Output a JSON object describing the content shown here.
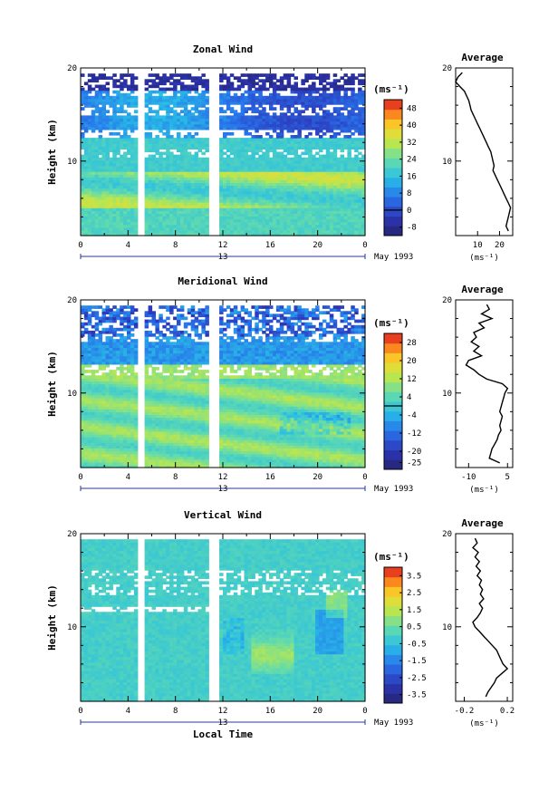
{
  "unit_label": "(ms⁻¹)",
  "date_label": "May 1993",
  "date_day": "13",
  "ylabel": "Height (km)",
  "xlabel": "Local Time",
  "profile_title": "Average",
  "chart_data": [
    {
      "type": "heatmap",
      "title": "Zonal Wind",
      "ylabel": "Height (km)",
      "x_ticks": [
        "0",
        "4",
        "8",
        "12",
        "16",
        "20",
        "0"
      ],
      "xlim": [
        0,
        24
      ],
      "y_ticks": [
        "10",
        "20"
      ],
      "ylim": [
        2,
        20
      ],
      "gaps_hours": [
        [
          5.0,
          5.3
        ],
        [
          10.8,
          11.5
        ]
      ],
      "colorbar_ticks": [
        "-8",
        "0",
        "8",
        "16",
        "24",
        "32",
        "40",
        "48"
      ],
      "colorbar_range": [
        -12,
        52
      ],
      "colorbar_contour": 0,
      "profile": {
        "title": "Average",
        "xticks": [
          "10",
          "20"
        ],
        "xlim": [
          0,
          26
        ],
        "y": [
          19.5,
          19.0,
          18.5,
          18.0,
          17.5,
          17.0,
          16.5,
          16.0,
          15.5,
          15.0,
          14.5,
          14.0,
          13.5,
          13.0,
          12.5,
          12.0,
          11.5,
          11.0,
          10.5,
          10.0,
          9.5,
          9.0,
          8.5,
          8.0,
          7.5,
          7.0,
          6.5,
          6.0,
          5.5,
          5.0,
          4.5,
          4.0,
          3.5,
          3.0,
          2.5
        ],
        "x": [
          3,
          1,
          0,
          2,
          4,
          5,
          6,
          6.5,
          7,
          8,
          9,
          10,
          11,
          12,
          13,
          14,
          15,
          16,
          16.5,
          17,
          17.5,
          17,
          18,
          19,
          20,
          21,
          22,
          23,
          24,
          25,
          24.5,
          24,
          23.5,
          23,
          24
        ],
        "xlabel": "(ms⁻¹)"
      }
    },
    {
      "type": "heatmap",
      "title": "Meridional Wind",
      "ylabel": "Height (km)",
      "x_ticks": [
        "0",
        "4",
        "8",
        "12",
        "16",
        "20",
        "0"
      ],
      "xlim": [
        0,
        24
      ],
      "y_ticks": [
        "10",
        "20"
      ],
      "ylim": [
        2,
        20
      ],
      "gaps_hours": [
        [
          5.0,
          5.3
        ],
        [
          10.8,
          11.5
        ]
      ],
      "colorbar_ticks": [
        "-25",
        "-20",
        "-12",
        "-4",
        "4",
        "12",
        "20",
        "28"
      ],
      "colorbar_range": [
        -28,
        32
      ],
      "colorbar_contour": 0,
      "profile": {
        "title": "Average",
        "xticks": [
          "-10",
          "5"
        ],
        "xlim": [
          -15,
          7
        ],
        "y": [
          19.5,
          19.0,
          18.5,
          18.0,
          17.5,
          17.0,
          16.5,
          16.0,
          15.5,
          15.0,
          14.5,
          14.0,
          13.5,
          13.0,
          12.5,
          12.0,
          11.5,
          11.0,
          10.5,
          10.0,
          9.5,
          9.0,
          8.5,
          8.0,
          7.5,
          7.0,
          6.5,
          6.0,
          5.5,
          5.0,
          4.5,
          4.0,
          3.5,
          3.0,
          2.5
        ],
        "x": [
          -3,
          -2,
          -5,
          -1,
          -6,
          -4,
          -8,
          -7,
          -9,
          -6,
          -8,
          -5,
          -10,
          -11,
          -8,
          -6,
          -3,
          3,
          5,
          4,
          3.5,
          3,
          2.5,
          2,
          3,
          2.5,
          2,
          2.5,
          1.5,
          1,
          0,
          -1,
          -1.5,
          -2,
          2
        ]
      },
      "profile_xlabel": "(ms⁻¹)"
    },
    {
      "type": "heatmap",
      "title": "Vertical Wind",
      "ylabel": "Height (km)",
      "xlabel": "Local Time",
      "x_ticks": [
        "0",
        "4",
        "8",
        "12",
        "16",
        "20",
        "0"
      ],
      "xlim": [
        0,
        24
      ],
      "y_ticks": [
        "10",
        "20"
      ],
      "ylim": [
        2,
        20
      ],
      "gaps_hours": [
        [
          5.0,
          5.3
        ],
        [
          10.8,
          11.5
        ]
      ],
      "colorbar_ticks": [
        "-3.5",
        "-2.5",
        "-1.5",
        "-0.5",
        "0.5",
        "1.5",
        "2.5",
        "3.5"
      ],
      "colorbar_range": [
        -4,
        4
      ],
      "colorbar_contour": null,
      "profile": {
        "title": "Average",
        "xticks": [
          "-0.2",
          "0.2"
        ],
        "xlim": [
          -0.28,
          0.25
        ],
        "y": [
          19.5,
          19.0,
          18.5,
          18.0,
          17.5,
          17.0,
          16.5,
          16.0,
          15.5,
          15.0,
          14.5,
          14.0,
          13.5,
          13.0,
          12.5,
          12.0,
          11.5,
          11.0,
          10.5,
          10.0,
          9.5,
          9.0,
          8.5,
          8.0,
          7.5,
          7.0,
          6.5,
          6.0,
          5.5,
          5.0,
          4.5,
          4.0,
          3.5,
          3.0,
          2.5
        ],
        "x": [
          -0.1,
          -0.08,
          -0.12,
          -0.07,
          -0.1,
          -0.06,
          -0.09,
          -0.05,
          -0.08,
          -0.04,
          -0.06,
          -0.03,
          -0.05,
          -0.02,
          -0.06,
          -0.03,
          -0.05,
          -0.08,
          -0.12,
          -0.1,
          -0.06,
          -0.02,
          0.02,
          0.06,
          0.1,
          0.12,
          0.14,
          0.16,
          0.2,
          0.15,
          0.1,
          0.08,
          0.05,
          0.02,
          0.0
        ]
      },
      "profile_xlabel": "(ms⁻¹)"
    }
  ]
}
